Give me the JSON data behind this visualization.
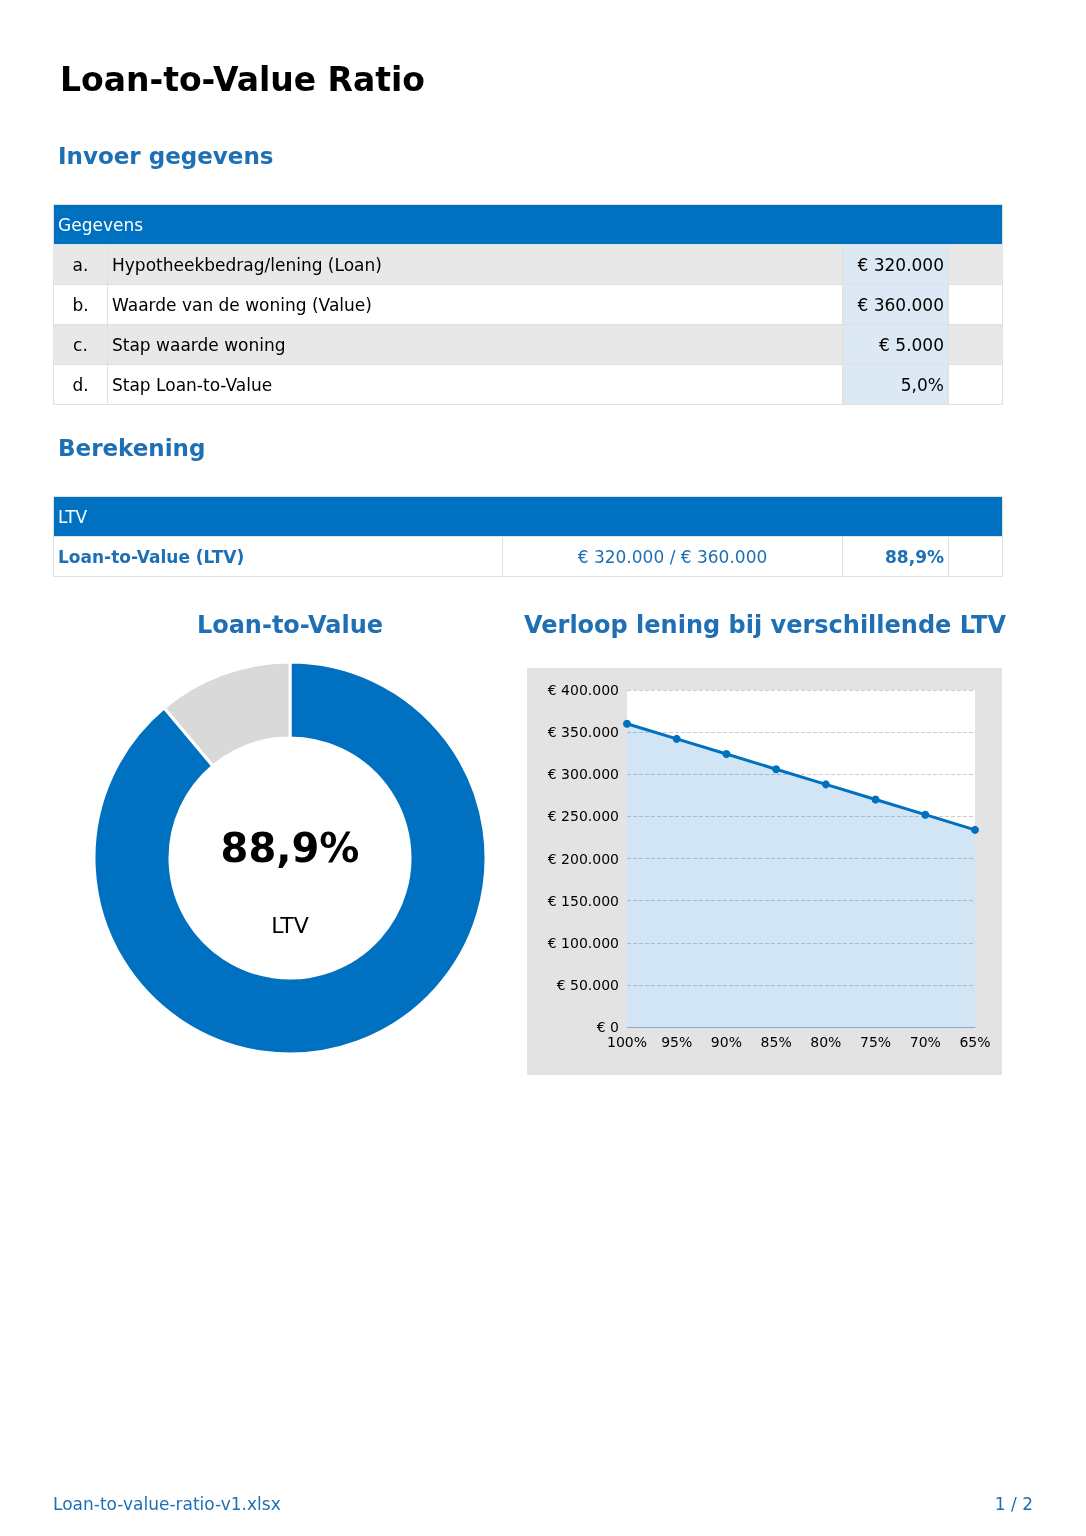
{
  "chart_data": [
    {
      "type": "other",
      "title": "Loan-to-Value Ratio",
      "annotations": [
        "Invoer gegevens",
        "Gegevens",
        "a.",
        "Hypotheekbedrag/lening (Loan)",
        "€ 320.000",
        "b.",
        "Waarde van de woning (Value)",
        "€ 360.000",
        "c.",
        "Stap waarde woning",
        "€ 5.000",
        "d.",
        "Stap Loan-to-Value",
        "5,0%",
        "Berekening",
        "LTV",
        "Loan-to-Value (LTV)",
        "€ 320.000 / € 360.000",
        "88,9%",
        "Loan-to-value-ratio-v1.xlsx",
        "1 / 2"
      ]
    },
    {
      "type": "donut",
      "title": "Loan-to-Value",
      "categories": [
        null,
        null
      ],
      "values": [
        88.9,
        11.1
      ],
      "colors": [
        "#0070c0",
        "#d9d9d9"
      ],
      "annotations": [
        "88,9%",
        "LTV"
      ]
    },
    {
      "type": "area",
      "title": "Verloop lening bij verschillende LTV",
      "categories": [
        "100%",
        "95%",
        "90%",
        "85%",
        "80%",
        "75%",
        "70%",
        "65%"
      ],
      "values": [
        360000,
        342000,
        324000,
        306000,
        288000,
        270000,
        252000,
        234000
      ],
      "color": "#0070c0",
      "ylim": [
        0,
        400000
      ],
      "yticks": [
        {
          "value": 0,
          "label": "€ 0"
        },
        {
          "value": 50000,
          "label": "€ 50.000"
        },
        {
          "value": 100000,
          "label": "€ 100.000"
        },
        {
          "value": 150000,
          "label": "€ 150.000"
        },
        {
          "value": 200000,
          "label": "€ 200.000"
        },
        {
          "value": 250000,
          "label": "€ 250.000"
        },
        {
          "value": 300000,
          "label": "€ 300.000"
        },
        {
          "value": 350000,
          "label": "€ 350.000"
        },
        {
          "value": 400000,
          "label": "€ 400.000"
        }
      ],
      "grid": "y",
      "marker": "circle",
      "line_style": "solid"
    }
  ]
}
